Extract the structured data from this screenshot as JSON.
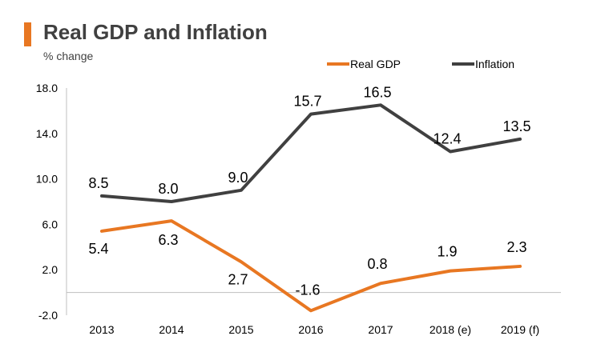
{
  "colors": {
    "accent": "#E87722",
    "real_gdp": "#E87722",
    "inflation": "#404040",
    "axis": "#bfbfbf",
    "text": "#000000"
  },
  "chart_data": {
    "type": "line",
    "title": "Real GDP and Inflation",
    "subtitle": "% change",
    "xlabel": "",
    "ylabel": "% change",
    "ylim": [
      -2.0,
      18.0
    ],
    "yticks": [
      -2.0,
      2.0,
      6.0,
      10.0,
      14.0,
      18.0
    ],
    "ytick_labels": [
      "-2.0",
      "2.0",
      "6.0",
      "10.0",
      "14.0",
      "18.0"
    ],
    "grid": false,
    "legend_position": "top-right",
    "categories": [
      "2013",
      "2014",
      "2015",
      "2016",
      "2017",
      "2018 (e)",
      "2019 (f)"
    ],
    "series": [
      {
        "name": "Real GDP",
        "values": [
          5.4,
          6.3,
          2.7,
          -1.6,
          0.8,
          1.9,
          2.3
        ],
        "labels": [
          "5.4",
          "6.3",
          "2.7",
          "-1.6",
          "0.8",
          "1.9",
          "2.3"
        ]
      },
      {
        "name": "Inflation",
        "values": [
          8.5,
          8.0,
          9.0,
          15.7,
          16.5,
          12.4,
          13.5
        ],
        "labels": [
          "8.5",
          "8.0",
          "9.0",
          "15.7",
          "16.5",
          "12.4",
          "13.5"
        ]
      }
    ]
  }
}
